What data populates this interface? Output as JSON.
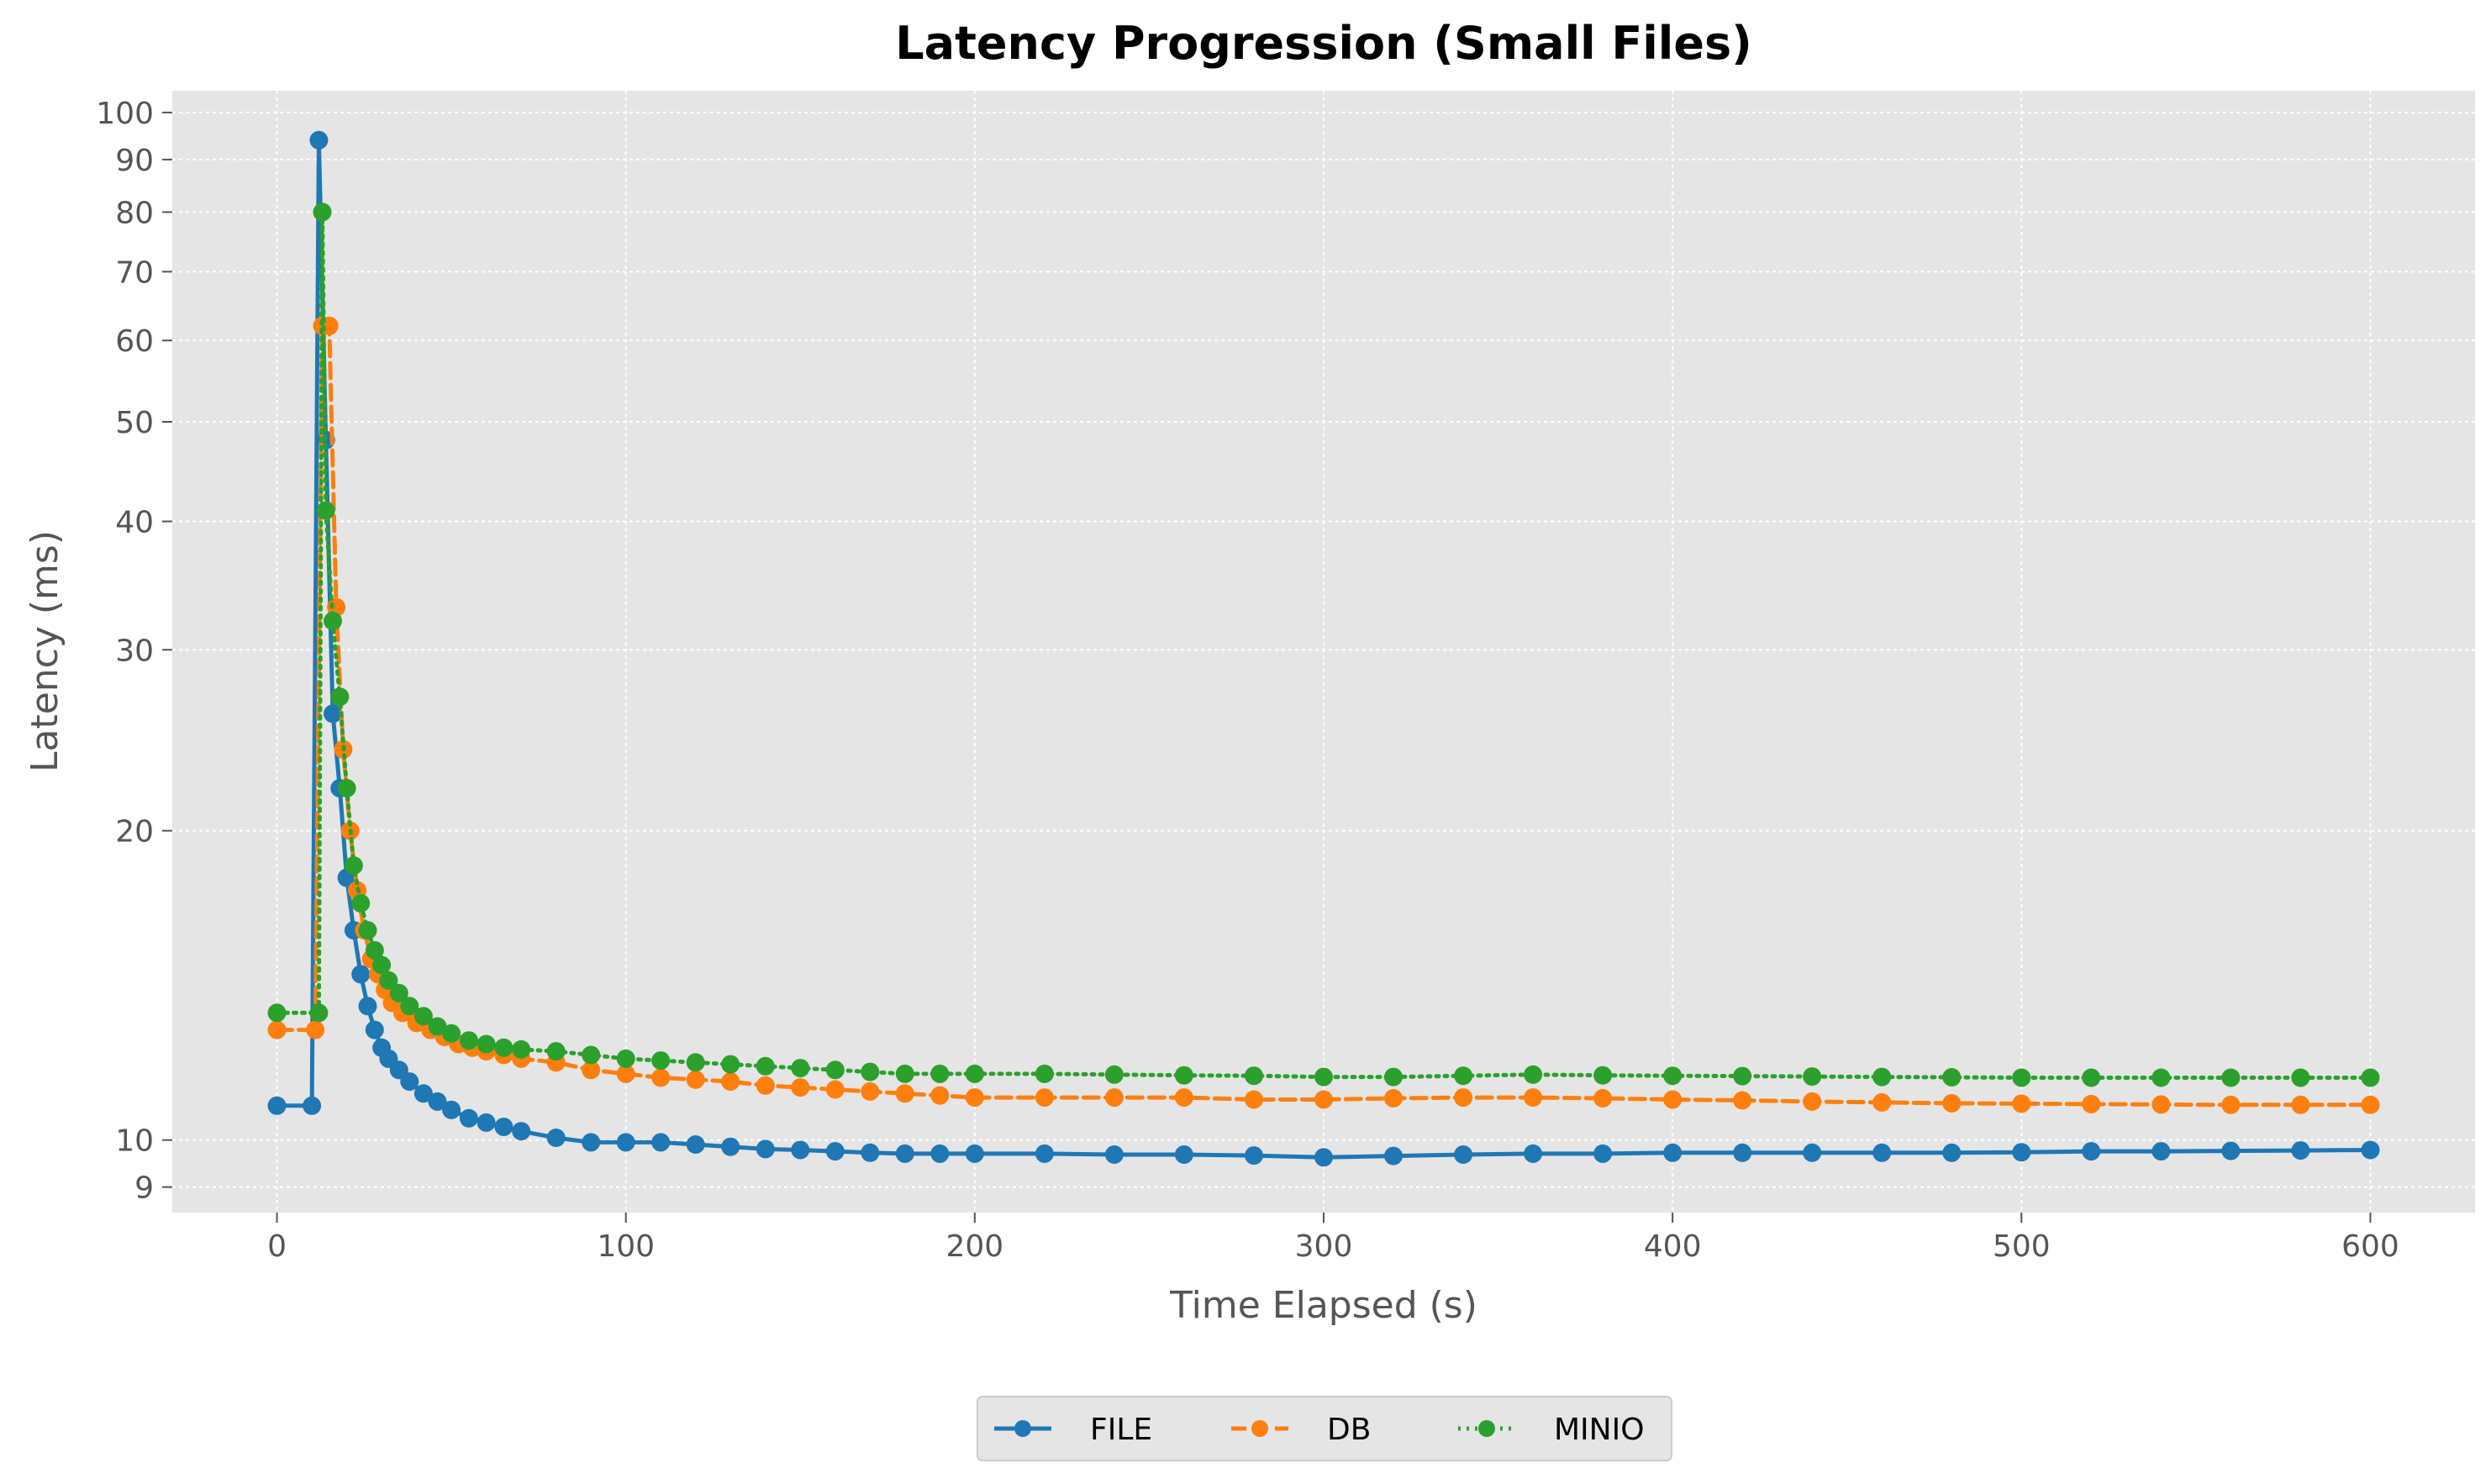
{
  "chart_data": {
    "type": "line",
    "title": "Latency Progression (Small Files)",
    "xlabel": "Time Elapsed (s)",
    "ylabel": "Latency (ms)",
    "yscale": "log",
    "xlim": [
      -30,
      630
    ],
    "ylim": [
      8.5,
      105
    ],
    "x_ticks": [
      0,
      100,
      200,
      300,
      400,
      500,
      600
    ],
    "x_tick_labels": [
      "0",
      "100",
      "200",
      "300",
      "400",
      "500",
      "600"
    ],
    "y_ticks": [
      9,
      10,
      20,
      30,
      40,
      50,
      60,
      70,
      80,
      90,
      100
    ],
    "y_tick_labels": [
      "9",
      "10",
      "20",
      "30",
      "40",
      "50",
      "60",
      "70",
      "80",
      "90",
      "100"
    ],
    "grid": true,
    "legend_position": "bottom-center",
    "series": [
      {
        "name": "FILE",
        "color": "#1f77b4",
        "line_style": "solid",
        "marker": "circle",
        "x": [
          0,
          10,
          12,
          14,
          16,
          18,
          20,
          22,
          24,
          26,
          28,
          30,
          32,
          35,
          38,
          42,
          46,
          50,
          55,
          60,
          65,
          70,
          80,
          90,
          100,
          110,
          120,
          130,
          140,
          150,
          160,
          170,
          180,
          190,
          200,
          220,
          240,
          260,
          280,
          300,
          320,
          340,
          360,
          380,
          400,
          420,
          440,
          460,
          480,
          500,
          520,
          540,
          560,
          580,
          600
        ],
        "y": [
          10.8,
          10.8,
          94,
          48,
          26,
          22,
          18,
          16,
          14.5,
          13.5,
          12.8,
          12.3,
          12.0,
          11.7,
          11.4,
          11.1,
          10.9,
          10.7,
          10.5,
          10.4,
          10.3,
          10.2,
          10.05,
          9.95,
          9.95,
          9.95,
          9.9,
          9.85,
          9.8,
          9.78,
          9.75,
          9.72,
          9.7,
          9.7,
          9.7,
          9.7,
          9.68,
          9.68,
          9.66,
          9.62,
          9.65,
          9.68,
          9.7,
          9.7,
          9.72,
          9.72,
          9.72,
          9.72,
          9.72,
          9.73,
          9.75,
          9.75,
          9.76,
          9.77,
          9.78
        ]
      },
      {
        "name": "DB",
        "color": "#ff7f0e",
        "line_style": "dashed",
        "marker": "circle",
        "x": [
          0,
          11,
          13,
          15,
          17,
          19,
          21,
          23,
          25,
          27,
          29,
          31,
          33,
          36,
          40,
          44,
          48,
          52,
          56,
          60,
          65,
          70,
          80,
          90,
          100,
          110,
          120,
          130,
          140,
          150,
          160,
          170,
          180,
          190,
          200,
          220,
          240,
          260,
          280,
          300,
          320,
          340,
          360,
          380,
          400,
          420,
          440,
          460,
          480,
          500,
          520,
          540,
          560,
          580,
          600
        ],
        "y": [
          12.8,
          12.8,
          62,
          62,
          33,
          24,
          20,
          17.5,
          16,
          15,
          14.5,
          14.0,
          13.6,
          13.3,
          13.0,
          12.8,
          12.6,
          12.4,
          12.3,
          12.2,
          12.1,
          12.0,
          11.9,
          11.7,
          11.6,
          11.5,
          11.45,
          11.4,
          11.3,
          11.25,
          11.2,
          11.15,
          11.1,
          11.05,
          11.0,
          11.0,
          11.0,
          11.0,
          10.95,
          10.95,
          10.98,
          11.0,
          11.0,
          10.98,
          10.95,
          10.93,
          10.9,
          10.88,
          10.86,
          10.85,
          10.84,
          10.83,
          10.82,
          10.82,
          10.82
        ]
      },
      {
        "name": "MINIO",
        "color": "#2ca02c",
        "line_style": "dotted",
        "marker": "circle",
        "x": [
          0,
          12,
          13,
          14,
          16,
          18,
          20,
          22,
          24,
          26,
          28,
          30,
          32,
          35,
          38,
          42,
          46,
          50,
          55,
          60,
          65,
          70,
          80,
          90,
          100,
          110,
          120,
          130,
          140,
          150,
          160,
          170,
          180,
          190,
          200,
          220,
          240,
          260,
          280,
          300,
          320,
          340,
          360,
          380,
          400,
          420,
          440,
          460,
          480,
          500,
          520,
          540,
          560,
          580,
          600
        ],
        "y": [
          13.3,
          13.3,
          80,
          41,
          32,
          27,
          22,
          18.5,
          17,
          16,
          15.3,
          14.8,
          14.3,
          13.9,
          13.5,
          13.2,
          12.9,
          12.7,
          12.5,
          12.4,
          12.3,
          12.25,
          12.2,
          12.1,
          12.0,
          11.95,
          11.9,
          11.85,
          11.8,
          11.75,
          11.7,
          11.65,
          11.6,
          11.6,
          11.6,
          11.6,
          11.58,
          11.56,
          11.55,
          11.52,
          11.52,
          11.55,
          11.58,
          11.56,
          11.55,
          11.54,
          11.53,
          11.52,
          11.51,
          11.5,
          11.5,
          11.5,
          11.5,
          11.5,
          11.5
        ]
      }
    ]
  }
}
